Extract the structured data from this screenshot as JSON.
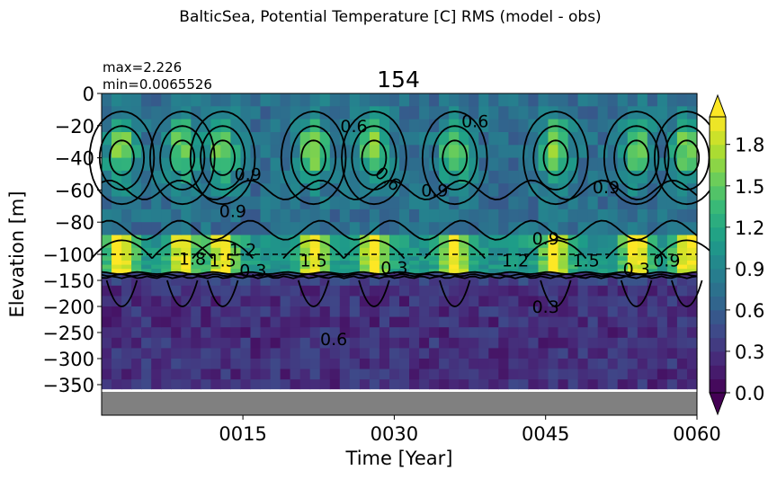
{
  "chart_data": {
    "type": "heatmap",
    "suptitle": "BalticSea, Potential Temperature [C] RMS (model - obs)",
    "title": "154",
    "stats": {
      "max": "max=2.226",
      "min": "min=0.0065526"
    },
    "xlabel": "Time [Year]",
    "ylabel": "Elevation [m]",
    "xlim": [
      1,
      60
    ],
    "xticks": [
      15,
      30,
      45,
      60
    ],
    "xtick_labels": [
      "0015",
      "0030",
      "0045",
      "0060"
    ],
    "yticks": [
      0,
      -20,
      -40,
      -60,
      -80,
      -100,
      -150,
      -200,
      -250,
      -300,
      -350
    ],
    "ytick_labels": [
      "0",
      "−20",
      "−40",
      "−60",
      "−80",
      "−100",
      "−150",
      "−200",
      "−250",
      "−300",
      "−350"
    ],
    "y_scale": "linear above -100 m, compressed below",
    "reference_depth": -100,
    "colormap": "viridis",
    "colorbar": {
      "ticks": [
        0.0,
        0.3,
        0.6,
        0.9,
        1.2,
        1.5,
        1.8
      ],
      "tick_labels": [
        "0.0",
        "0.3",
        "0.6",
        "0.9",
        "1.2",
        "1.5",
        "1.8"
      ],
      "range": [
        0.0,
        2.0
      ],
      "extend": "both"
    },
    "peak_years": [
      3,
      9,
      13,
      22,
      28,
      36,
      46,
      54,
      59
    ],
    "no_data_color": "#808080",
    "contour_labels": [
      {
        "text": "0.6",
        "t": 26,
        "z": -20
      },
      {
        "text": "0.6",
        "t": 38,
        "z": -17
      },
      {
        "text": "0.9",
        "t": 15.5,
        "z": -50
      },
      {
        "text": "0.6",
        "t": 29,
        "z": -52,
        "rotate": 40
      },
      {
        "text": "0.9",
        "t": 34,
        "z": -60
      },
      {
        "text": "0.9",
        "t": 51,
        "z": -58
      },
      {
        "text": "0.9",
        "t": 14,
        "z": -73
      },
      {
        "text": "0.9",
        "t": 45,
        "z": -90
      },
      {
        "text": "1.2",
        "t": 15,
        "z": -97
      },
      {
        "text": "1.8",
        "t": 10,
        "z": -108
      },
      {
        "text": "1.5",
        "t": 13,
        "z": -111
      },
      {
        "text": "1.5",
        "t": 22,
        "z": -111
      },
      {
        "text": "1.2",
        "t": 42,
        "z": -111
      },
      {
        "text": "1.5",
        "t": 49,
        "z": -111
      },
      {
        "text": "0.9",
        "t": 57,
        "z": -111
      },
      {
        "text": "0.3",
        "t": 16,
        "z": -130
      },
      {
        "text": "0.3",
        "t": 30,
        "z": -125
      },
      {
        "text": "0.3",
        "t": 54,
        "z": -128
      },
      {
        "text": "0.3",
        "t": 45,
        "z": -200
      },
      {
        "text": "0.6",
        "t": 24,
        "z": -262
      }
    ]
  }
}
